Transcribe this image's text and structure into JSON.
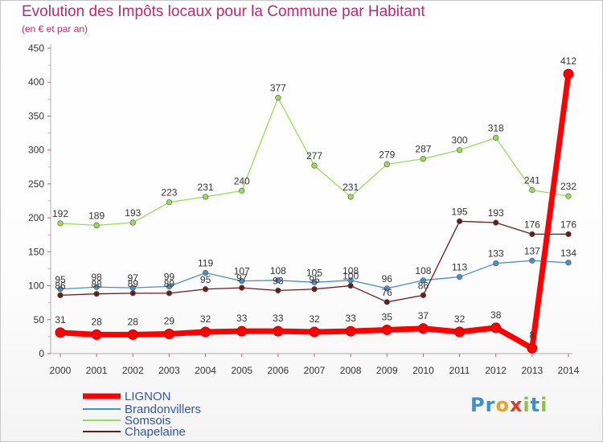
{
  "header": {
    "title": "Evolution des Impôts locaux pour la Commune par Habitant",
    "subtitle": "(en € et par an)"
  },
  "logo": {
    "text": "Proxiti",
    "letters": [
      {
        "ch": "P",
        "color": "#3a8fd6"
      },
      {
        "ch": "r",
        "color": "#3a8fd6"
      },
      {
        "ch": "o",
        "color": "#f0a020"
      },
      {
        "ch": "x",
        "color": "#e03a2a"
      },
      {
        "ch": "i",
        "color": "#8bc34a"
      },
      {
        "ch": "t",
        "color": "#3a8fd6"
      },
      {
        "ch": "i",
        "color": "#8bc34a"
      }
    ]
  },
  "chart_data": {
    "type": "line",
    "title": "Evolution des Impôts locaux pour la Commune par Habitant",
    "subtitle": "(en € et par an)",
    "xlabel": "",
    "ylabel": "",
    "x": [
      2000,
      2001,
      2002,
      2003,
      2004,
      2005,
      2006,
      2007,
      2008,
      2009,
      2010,
      2011,
      2012,
      2013,
      2014
    ],
    "ylim": [
      0,
      450
    ],
    "yticks": [
      0,
      50,
      100,
      150,
      200,
      250,
      300,
      350,
      400,
      450
    ],
    "grid": false,
    "legend_position": "bottom-left",
    "series": [
      {
        "name": "LIGNON",
        "color": "#ff0000",
        "emphasized": true,
        "values": [
          31,
          28,
          28,
          29,
          32,
          33,
          33,
          32,
          33,
          35,
          37,
          32,
          38,
          8,
          412
        ],
        "labels": [
          "31",
          "28",
          "28",
          "29",
          "32",
          "33",
          "33",
          "32",
          "33",
          "35",
          "37",
          "32",
          "38",
          "8",
          "412"
        ]
      },
      {
        "name": "Brandonvillers",
        "color": "#4a90c8",
        "values": [
          95,
          98,
          97,
          99,
          119,
          107,
          108,
          105,
          108,
          96,
          108,
          113,
          133,
          137,
          134
        ],
        "labels": [
          "95",
          "98",
          "97",
          "99",
          "119",
          "107",
          "108",
          "105",
          "108",
          "96",
          "108",
          "113",
          "133",
          "137",
          "134"
        ]
      },
      {
        "name": "Somsois",
        "color": "#99dd55",
        "values": [
          192,
          189,
          193,
          223,
          231,
          240,
          377,
          277,
          231,
          279,
          287,
          300,
          318,
          241,
          232
        ],
        "labels": [
          "192",
          "189",
          "193",
          "223",
          "231",
          "240",
          "377",
          "277",
          "231",
          "279",
          "287",
          "300",
          "318",
          "241",
          "232"
        ]
      },
      {
        "name": "Chapelaine",
        "color": "#6b1b1b",
        "values": [
          86,
          88,
          89,
          89,
          95,
          97,
          93,
          95,
          100,
          76,
          86,
          195,
          193,
          176,
          176
        ],
        "labels": [
          "86",
          "88",
          "89",
          "89",
          "95",
          "97",
          "93",
          "95",
          "100",
          "76",
          "86",
          "195",
          "193",
          "176",
          "176"
        ]
      }
    ]
  }
}
